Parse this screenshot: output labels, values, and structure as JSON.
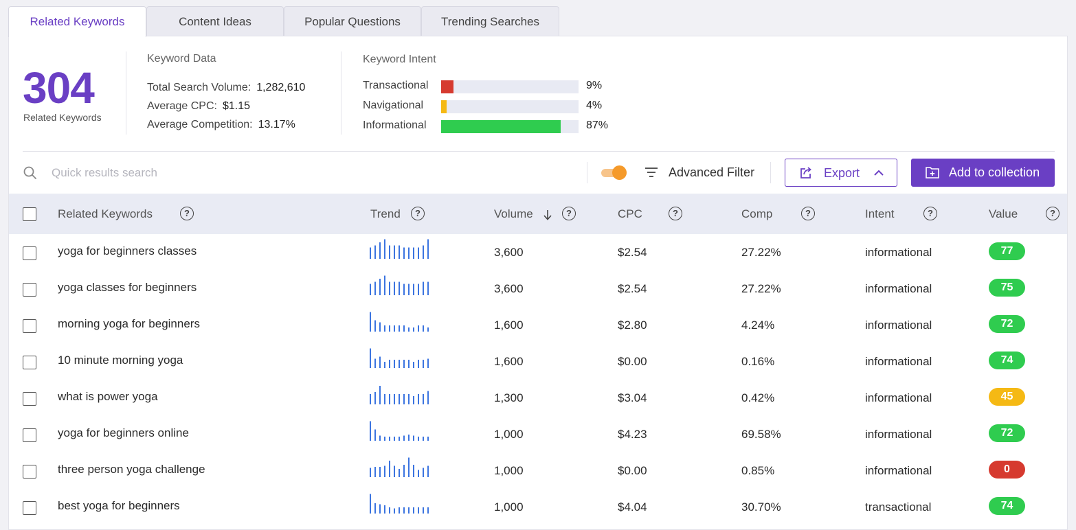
{
  "tabs": [
    {
      "label": "Related Keywords",
      "active": true
    },
    {
      "label": "Content Ideas",
      "active": false
    },
    {
      "label": "Popular Questions",
      "active": false
    },
    {
      "label": "Trending Searches",
      "active": false
    }
  ],
  "summary": {
    "count": "304",
    "count_label": "Related Keywords"
  },
  "keyword_data": {
    "title": "Keyword Data",
    "rows": [
      {
        "label": "Total Search Volume:",
        "value": "1,282,610"
      },
      {
        "label": "Average CPC:",
        "value": "$1.15"
      },
      {
        "label": "Average Competition:",
        "value": "13.17%"
      }
    ]
  },
  "keyword_intent": {
    "title": "Keyword Intent",
    "rows": [
      {
        "label": "Transactional",
        "pct": "9%",
        "fraction": 0.09,
        "color": "#d63a2f"
      },
      {
        "label": "Navigational",
        "pct": "4%",
        "fraction": 0.04,
        "color": "#f5b914"
      },
      {
        "label": "Informational",
        "pct": "87%",
        "fraction": 0.87,
        "color": "#2fcc4f"
      }
    ]
  },
  "toolbar": {
    "search_placeholder": "Quick results search",
    "toggle_on": true,
    "filter_label": "Advanced Filter",
    "export_label": "Export",
    "add_label": "Add to collection"
  },
  "table": {
    "headers": {
      "keyword": "Related Keywords",
      "trend": "Trend",
      "volume": "Volume",
      "cpc": "CPC",
      "comp": "Comp",
      "intent": "Intent",
      "value": "Value"
    },
    "rows": [
      {
        "keyword": "yoga for beginners classes",
        "volume": "3,600",
        "cpc": "$2.54",
        "comp": "27.22%",
        "intent": "informational",
        "value": "77",
        "value_color": "#2fcc4f",
        "trend": [
          0.55,
          0.65,
          0.8,
          0.95,
          0.65,
          0.65,
          0.65,
          0.55,
          0.55,
          0.55,
          0.55,
          0.65,
          0.95
        ]
      },
      {
        "keyword": "yoga classes for beginners",
        "volume": "3,600",
        "cpc": "$2.54",
        "comp": "27.22%",
        "intent": "informational",
        "value": "75",
        "value_color": "#2fcc4f",
        "trend": [
          0.55,
          0.65,
          0.8,
          0.95,
          0.65,
          0.65,
          0.65,
          0.55,
          0.55,
          0.55,
          0.55,
          0.65,
          0.65
        ]
      },
      {
        "keyword": "morning yoga for beginners",
        "volume": "1,600",
        "cpc": "$2.80",
        "comp": "4.24%",
        "intent": "informational",
        "value": "72",
        "value_color": "#2fcc4f",
        "trend": [
          0.95,
          0.55,
          0.45,
          0.3,
          0.3,
          0.3,
          0.3,
          0.3,
          0.2,
          0.2,
          0.3,
          0.3,
          0.2
        ]
      },
      {
        "keyword": "10 minute morning yoga",
        "volume": "1,600",
        "cpc": "$0.00",
        "comp": "0.16%",
        "intent": "informational",
        "value": "74",
        "value_color": "#2fcc4f",
        "trend": [
          0.95,
          0.45,
          0.55,
          0.3,
          0.4,
          0.4,
          0.4,
          0.4,
          0.4,
          0.3,
          0.4,
          0.4,
          0.45
        ]
      },
      {
        "keyword": "what is power yoga",
        "volume": "1,300",
        "cpc": "$3.04",
        "comp": "0.42%",
        "intent": "informational",
        "value": "45",
        "value_color": "#f5b914",
        "trend": [
          0.5,
          0.6,
          0.9,
          0.5,
          0.5,
          0.5,
          0.5,
          0.5,
          0.5,
          0.4,
          0.5,
          0.5,
          0.65
        ]
      },
      {
        "keyword": "yoga for beginners online",
        "volume": "1,000",
        "cpc": "$4.23",
        "comp": "69.58%",
        "intent": "informational",
        "value": "72",
        "value_color": "#2fcc4f",
        "trend": [
          0.95,
          0.55,
          0.25,
          0.2,
          0.2,
          0.2,
          0.2,
          0.25,
          0.3,
          0.25,
          0.2,
          0.2,
          0.2
        ]
      },
      {
        "keyword": "three person yoga challenge",
        "volume": "1,000",
        "cpc": "$0.00",
        "comp": "0.85%",
        "intent": "informational",
        "value": "0",
        "value_color": "#d63a2f",
        "trend": [
          0.45,
          0.5,
          0.5,
          0.55,
          0.8,
          0.55,
          0.4,
          0.6,
          0.95,
          0.6,
          0.35,
          0.45,
          0.55
        ]
      },
      {
        "keyword": "best yoga for beginners",
        "volume": "1,000",
        "cpc": "$4.04",
        "comp": "30.70%",
        "intent": "transactional",
        "value": "74",
        "value_color": "#2fcc4f",
        "trend": [
          0.95,
          0.5,
          0.45,
          0.4,
          0.3,
          0.25,
          0.3,
          0.3,
          0.3,
          0.3,
          0.3,
          0.3,
          0.3
        ]
      }
    ]
  }
}
